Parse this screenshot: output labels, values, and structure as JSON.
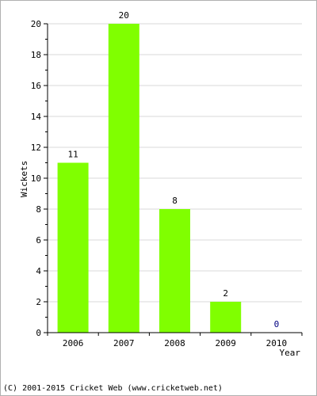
{
  "chart_data": {
    "type": "bar",
    "categories": [
      "2006",
      "2007",
      "2008",
      "2009",
      "2010"
    ],
    "values": [
      11,
      20,
      8,
      2,
      0
    ],
    "data_labels": [
      "11",
      "20",
      "8",
      "2",
      "0"
    ],
    "title": "",
    "xlabel": "Year",
    "ylabel": "Wickets",
    "ylim": [
      0,
      20
    ],
    "yticks": [
      0,
      2,
      4,
      6,
      8,
      10,
      12,
      14,
      16,
      18,
      20
    ],
    "grid": true,
    "legend": "none",
    "colors": {
      "bar": "#80ff00",
      "grid": "#d8d8d8",
      "axis": "#000000",
      "zero_label": "#000080"
    }
  },
  "footer": {
    "text": "(C) 2001-2015 Cricket Web (www.cricketweb.net)"
  }
}
